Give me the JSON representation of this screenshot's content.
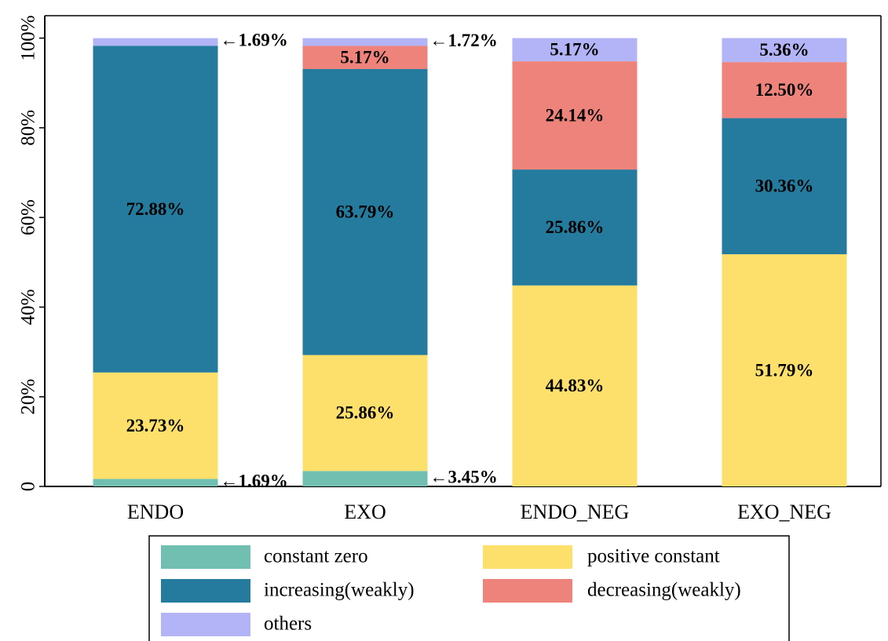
{
  "chart_data": {
    "type": "stacked_bar",
    "categories": [
      "ENDO",
      "EXO",
      "ENDO_NEG",
      "EXO_NEG"
    ],
    "series": [
      {
        "name": "constant zero",
        "color": "#70bfb0",
        "values": [
          1.69,
          3.45,
          0,
          0
        ],
        "value_labels": [
          "←1.69%",
          "←3.45%",
          null,
          null
        ]
      },
      {
        "name": "positive constant",
        "color": "#fddf6b",
        "values": [
          23.73,
          25.86,
          44.83,
          51.79
        ],
        "value_labels": [
          "23.73%",
          "25.86%",
          "44.83%",
          "51.79%"
        ]
      },
      {
        "name": "increasing(weakly)",
        "color": "#257b9e",
        "values": [
          72.88,
          63.79,
          25.86,
          30.36
        ],
        "value_labels": [
          "72.88%",
          "63.79%",
          "25.86%",
          "30.36%"
        ]
      },
      {
        "name": "decreasing(weakly)",
        "color": "#ee837b",
        "values": [
          0,
          5.17,
          24.14,
          12.5
        ],
        "value_labels": [
          null,
          "5.17%",
          "24.14%",
          "12.50%"
        ]
      },
      {
        "name": "others",
        "color": "#b3b3f7",
        "values": [
          1.69,
          1.72,
          5.17,
          5.36
        ],
        "value_labels": [
          "←1.69%",
          "←1.72%",
          "5.17%",
          "5.36%"
        ]
      }
    ],
    "ylim": [
      0,
      105
    ],
    "yticks": [
      0,
      {
        "value": 20,
        "label": "20%"
      },
      {
        "value": 40,
        "label": "40%"
      },
      {
        "value": 60,
        "label": "60%"
      },
      {
        "value": 80,
        "label": "80%"
      },
      {
        "value": 100,
        "label": "100%"
      }
    ],
    "legend": "bottom"
  }
}
